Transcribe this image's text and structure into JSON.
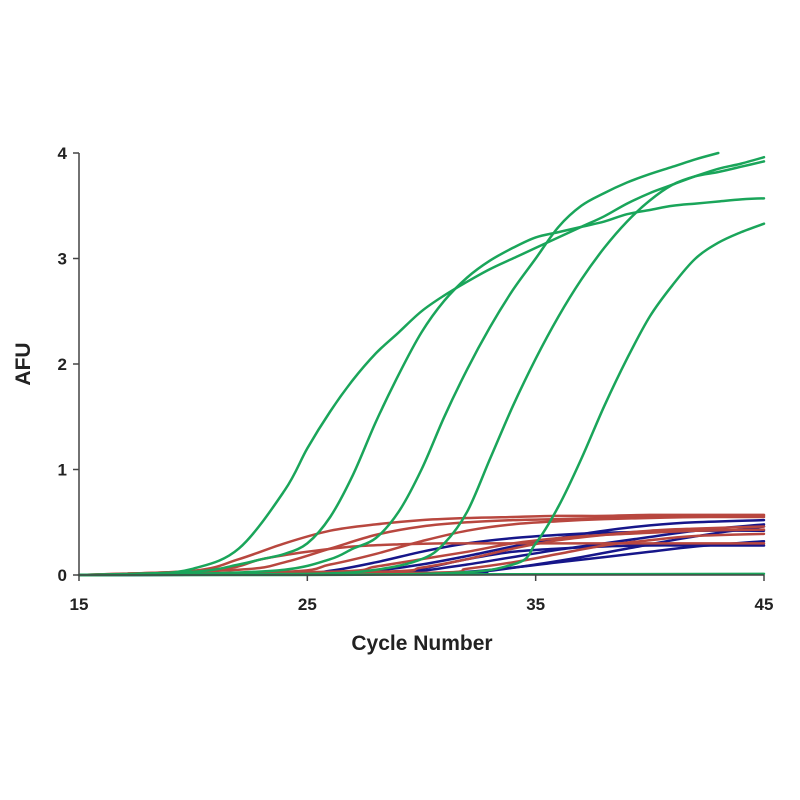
{
  "chart_data": {
    "type": "line",
    "title": "",
    "xlabel": "Cycle Number",
    "ylabel": "AFU",
    "xlim": [
      15,
      45
    ],
    "ylim": [
      0,
      4
    ],
    "xticks": [
      15,
      25,
      35,
      45
    ],
    "yticks": [
      0,
      1,
      2,
      3,
      4
    ],
    "grid": false,
    "legend": "none",
    "colors": {
      "green": "#1aa55a",
      "red": "#b8473f",
      "blue": "#16168a"
    },
    "series": [
      {
        "color": "green",
        "x": [
          15,
          18,
          20,
          22,
          24,
          25,
          26,
          27,
          28,
          29,
          30,
          31,
          32,
          33,
          34,
          35,
          36,
          37,
          38,
          39,
          40,
          41,
          42,
          43,
          44,
          45
        ],
        "y": [
          0,
          0.01,
          0.06,
          0.25,
          0.8,
          1.2,
          1.55,
          1.85,
          2.1,
          2.3,
          2.5,
          2.65,
          2.78,
          2.9,
          3.0,
          3.1,
          3.2,
          3.3,
          3.4,
          3.52,
          3.62,
          3.7,
          3.78,
          3.85,
          3.9,
          3.96
        ]
      },
      {
        "color": "green",
        "x": [
          15,
          20,
          22,
          23,
          24,
          25,
          26,
          27,
          28,
          29,
          30,
          31,
          32,
          33,
          34,
          35,
          36,
          37,
          38,
          39,
          40,
          41,
          42,
          43,
          44,
          45
        ],
        "y": [
          0,
          0.03,
          0.1,
          0.15,
          0.2,
          0.3,
          0.55,
          0.95,
          1.45,
          1.9,
          2.3,
          2.6,
          2.82,
          2.98,
          3.1,
          3.2,
          3.25,
          3.3,
          3.35,
          3.42,
          3.46,
          3.5,
          3.52,
          3.54,
          3.56,
          3.57
        ]
      },
      {
        "color": "green",
        "x": [
          15,
          20,
          24,
          26,
          27,
          28,
          29,
          30,
          31,
          32,
          33,
          34,
          35,
          36,
          37,
          38,
          39,
          40,
          41,
          42,
          43
        ],
        "y": [
          0,
          0.01,
          0.05,
          0.15,
          0.25,
          0.35,
          0.6,
          1.0,
          1.5,
          1.95,
          2.35,
          2.7,
          3.0,
          3.3,
          3.5,
          3.62,
          3.72,
          3.8,
          3.87,
          3.94,
          4.0
        ]
      },
      {
        "color": "green",
        "x": [
          15,
          25,
          28,
          30,
          31,
          32,
          33,
          34,
          35,
          36,
          37,
          38,
          39,
          40,
          41,
          42,
          43,
          44,
          45
        ],
        "y": [
          0,
          0.01,
          0.05,
          0.15,
          0.3,
          0.6,
          1.1,
          1.6,
          2.05,
          2.45,
          2.8,
          3.1,
          3.35,
          3.55,
          3.7,
          3.78,
          3.82,
          3.87,
          3.92
        ]
      },
      {
        "color": "green",
        "x": [
          15,
          30,
          34,
          35,
          36,
          37,
          38,
          39,
          40,
          41,
          42,
          43,
          44,
          45
        ],
        "y": [
          0,
          0.01,
          0.1,
          0.3,
          0.65,
          1.1,
          1.6,
          2.05,
          2.45,
          2.75,
          3.0,
          3.15,
          3.25,
          3.33
        ]
      },
      {
        "color": "green",
        "x": [
          15,
          45
        ],
        "y": [
          0,
          0.01
        ]
      },
      {
        "color": "red",
        "x": [
          15,
          20,
          22,
          24,
          26,
          28,
          30,
          32,
          34,
          36,
          38,
          40,
          42,
          45
        ],
        "y": [
          0,
          0.04,
          0.15,
          0.3,
          0.42,
          0.48,
          0.52,
          0.54,
          0.55,
          0.56,
          0.56,
          0.57,
          0.57,
          0.57
        ]
      },
      {
        "color": "red",
        "x": [
          15,
          22,
          24,
          26,
          28,
          30,
          32,
          34,
          36,
          38,
          40,
          42,
          45
        ],
        "y": [
          0,
          0.05,
          0.12,
          0.25,
          0.38,
          0.46,
          0.5,
          0.52,
          0.53,
          0.54,
          0.55,
          0.55,
          0.55
        ]
      },
      {
        "color": "red",
        "x": [
          15,
          24,
          26,
          28,
          30,
          32,
          34,
          36,
          38,
          40,
          42,
          45
        ],
        "y": [
          0,
          0.03,
          0.1,
          0.2,
          0.32,
          0.42,
          0.48,
          0.51,
          0.53,
          0.54,
          0.55,
          0.56
        ]
      },
      {
        "color": "red",
        "x": [
          15,
          21,
          23,
          25,
          27,
          29,
          31,
          33,
          35,
          37,
          40,
          45
        ],
        "y": [
          0,
          0.05,
          0.15,
          0.22,
          0.27,
          0.29,
          0.3,
          0.3,
          0.3,
          0.3,
          0.3,
          0.3
        ]
      },
      {
        "color": "red",
        "x": [
          15,
          26,
          28,
          30,
          32,
          34,
          36,
          38,
          40,
          42,
          45
        ],
        "y": [
          0,
          0.03,
          0.08,
          0.15,
          0.22,
          0.3,
          0.35,
          0.38,
          0.4,
          0.42,
          0.43
        ]
      },
      {
        "color": "red",
        "x": [
          15,
          28,
          30,
          32,
          34,
          36,
          38,
          40,
          42,
          45
        ],
        "y": [
          0,
          0.03,
          0.07,
          0.15,
          0.25,
          0.33,
          0.38,
          0.42,
          0.44,
          0.46
        ]
      },
      {
        "color": "red",
        "x": [
          15,
          30,
          32,
          34,
          36,
          38,
          40,
          42,
          45
        ],
        "y": [
          0,
          0.02,
          0.06,
          0.12,
          0.2,
          0.28,
          0.33,
          0.37,
          0.39
        ]
      },
      {
        "color": "blue",
        "x": [
          15,
          24,
          26,
          28,
          30,
          32,
          34,
          36,
          38,
          40,
          42,
          45
        ],
        "y": [
          0,
          0.01,
          0.04,
          0.12,
          0.22,
          0.3,
          0.35,
          0.38,
          0.4,
          0.41,
          0.42,
          0.42
        ]
      },
      {
        "color": "blue",
        "x": [
          15,
          26,
          28,
          30,
          32,
          34,
          36,
          38,
          40,
          42,
          45
        ],
        "y": [
          0,
          0.01,
          0.04,
          0.1,
          0.18,
          0.27,
          0.35,
          0.42,
          0.47,
          0.5,
          0.52
        ]
      },
      {
        "color": "blue",
        "x": [
          15,
          28,
          30,
          32,
          34,
          36,
          38,
          40,
          42,
          45
        ],
        "y": [
          0,
          0.01,
          0.04,
          0.1,
          0.17,
          0.24,
          0.3,
          0.36,
          0.42,
          0.48
        ]
      },
      {
        "color": "blue",
        "x": [
          15,
          28,
          30,
          32,
          34,
          36,
          38,
          40,
          42,
          45
        ],
        "y": [
          0,
          0.01,
          0.06,
          0.15,
          0.22,
          0.25,
          0.27,
          0.28,
          0.28,
          0.28
        ]
      },
      {
        "color": "blue",
        "x": [
          15,
          30,
          32,
          34,
          36,
          38,
          40,
          42,
          45
        ],
        "y": [
          0,
          0.01,
          0.03,
          0.07,
          0.12,
          0.17,
          0.22,
          0.27,
          0.32
        ]
      },
      {
        "color": "blue",
        "x": [
          15,
          31,
          33,
          35,
          37,
          39,
          41,
          43,
          45
        ],
        "y": [
          0,
          0.01,
          0.04,
          0.1,
          0.17,
          0.25,
          0.33,
          0.4,
          0.46
        ]
      }
    ]
  }
}
